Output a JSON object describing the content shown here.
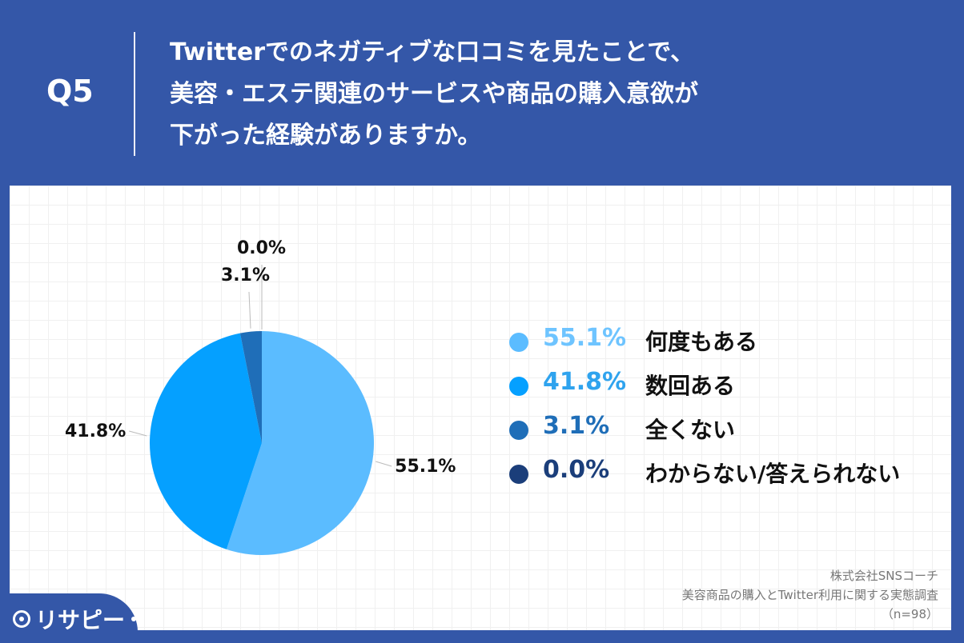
{
  "header": {
    "q_label": "Q5",
    "question_lines": [
      "Twitterでのネガティブな口コミを見たことで、",
      "美容・エステ関連のサービスや商品の購入意欲が",
      "下がった経験がありますか。"
    ]
  },
  "chart_data": {
    "type": "pie",
    "categories": [
      "何度もある",
      "数回ある",
      "全くない",
      "わからない/答えられない"
    ],
    "values": [
      55.1,
      41.8,
      3.1,
      0.0
    ],
    "value_labels": [
      "55.1%",
      "41.8%",
      "3.1%",
      "0.0%"
    ],
    "colors": [
      "#5bbcff",
      "#05a0ff",
      "#1f6eb8",
      "#1b3e7a"
    ],
    "legend_placement": "right",
    "legend_text_colors": [
      "#6ec4ff",
      "#2fa3ee",
      "#1f6eb8",
      "#1b3e7a"
    ]
  },
  "source": {
    "line1": "株式会社SNSコーチ",
    "line2": "美容商品の購入とTwitter利用に関する実態調査",
    "line3": "（n=98）"
  },
  "logo": {
    "text": "リサピー"
  }
}
